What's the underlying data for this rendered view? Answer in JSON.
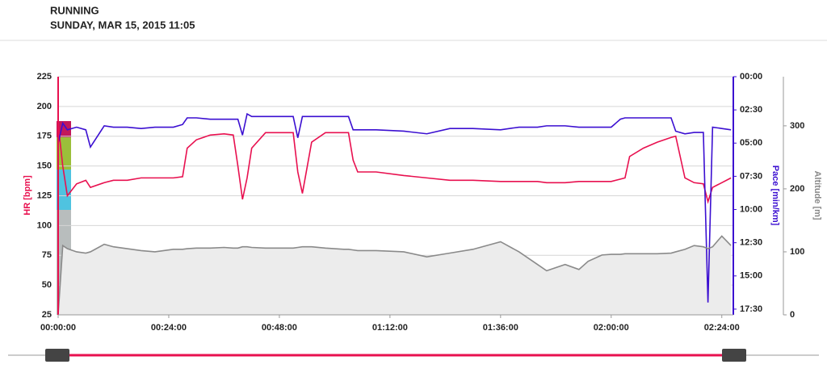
{
  "header": {
    "activity": "RUNNING",
    "date": "SUNDAY, MAR 15, 2015 11:05"
  },
  "chart_data": {
    "type": "line",
    "x": [
      0,
      1,
      2,
      4,
      6,
      7,
      10,
      12,
      15,
      18,
      21,
      25,
      27,
      28,
      30,
      33,
      36,
      38,
      39,
      40,
      41,
      42,
      45,
      48,
      51,
      52,
      53,
      55,
      58,
      62,
      63,
      64,
      65,
      69,
      75,
      80,
      85,
      90,
      96,
      100,
      104,
      106,
      110,
      113,
      115,
      118,
      120,
      122,
      123,
      124,
      127,
      130,
      133,
      134,
      136,
      138,
      140,
      141,
      142,
      144,
      146
    ],
    "xlim": [
      0,
      146.5
    ],
    "xticks": [
      {
        "value": 0,
        "label": "00:00:00"
      },
      {
        "value": 24,
        "label": "00:24:00"
      },
      {
        "value": 48,
        "label": "00:48:00"
      },
      {
        "value": 72,
        "label": "01:12:00"
      },
      {
        "value": 96,
        "label": "01:36:00"
      },
      {
        "value": 120,
        "label": "02:00:00"
      },
      {
        "value": 144,
        "label": "02:24:00"
      }
    ],
    "ylabel": "HR [bpm]",
    "ylim": [
      25,
      225
    ],
    "yticks": [
      25,
      50,
      75,
      100,
      125,
      150,
      175,
      200,
      225
    ],
    "y2label": "Pace [min/km]",
    "y2lim": [
      17.93,
      0
    ],
    "y2ticks": [
      {
        "value": 0,
        "label": "00:00"
      },
      {
        "value": 2.5,
        "label": "02:30"
      },
      {
        "value": 5,
        "label": "05:00"
      },
      {
        "value": 7.5,
        "label": "07:30"
      },
      {
        "value": 10,
        "label": "10:00"
      },
      {
        "value": 12.5,
        "label": "12:30"
      },
      {
        "value": 15,
        "label": "15:00"
      },
      {
        "value": 17.5,
        "label": "17:30"
      }
    ],
    "y3label": "Altitude [m]",
    "y3lim": [
      0,
      378
    ],
    "y3ticks": [
      0,
      100,
      200,
      300
    ],
    "grid": true,
    "series": [
      {
        "name": "HR",
        "color": "#e8104f",
        "axis": "y",
        "values": [
          185,
          150,
          125,
          135,
          138,
          132,
          136,
          138,
          138,
          140,
          140,
          140,
          141,
          165,
          172,
          176,
          177,
          176,
          150,
          122,
          140,
          165,
          178,
          178,
          178,
          145,
          127,
          170,
          178,
          178,
          178,
          155,
          145,
          145,
          142,
          140,
          138,
          138,
          137,
          137,
          137,
          136,
          136,
          137,
          137,
          137,
          137,
          139,
          140,
          158,
          165,
          170,
          174,
          175,
          140,
          136,
          135,
          120,
          132,
          136,
          140
        ]
      },
      {
        "name": "Pace",
        "color": "#3b0fd1",
        "axis": "y2",
        "values": [
          5.0,
          3.5,
          4.0,
          3.8,
          4.0,
          5.3,
          3.7,
          3.8,
          3.8,
          3.9,
          3.8,
          3.8,
          3.6,
          3.1,
          3.1,
          3.2,
          3.2,
          3.2,
          3.2,
          4.4,
          2.8,
          3.0,
          3.0,
          3.0,
          3.0,
          4.6,
          3.0,
          3.0,
          3.0,
          3.0,
          3.0,
          4.0,
          4.0,
          4.0,
          4.1,
          4.3,
          3.9,
          3.9,
          4.0,
          3.8,
          3.8,
          3.7,
          3.7,
          3.8,
          3.8,
          3.8,
          3.8,
          3.2,
          3.1,
          3.1,
          3.1,
          3.1,
          3.1,
          4.1,
          4.3,
          4.2,
          4.2,
          17.0,
          3.8,
          3.9,
          4.0
        ]
      },
      {
        "name": "Altitude",
        "color": "#8a8a8a",
        "axis": "y3",
        "values": [
          0,
          110,
          105,
          100,
          98,
          100,
          112,
          108,
          105,
          102,
          100,
          104,
          104,
          105,
          106,
          106,
          107,
          106,
          106,
          108,
          108,
          107,
          106,
          106,
          106,
          107,
          108,
          108,
          106,
          104,
          104,
          103,
          102,
          102,
          100,
          92,
          98,
          104,
          116,
          100,
          80,
          70,
          80,
          72,
          85,
          95,
          96,
          96,
          97,
          97,
          97,
          97,
          98,
          100,
          104,
          110,
          108,
          105,
          108,
          125,
          110
        ]
      }
    ]
  }
}
